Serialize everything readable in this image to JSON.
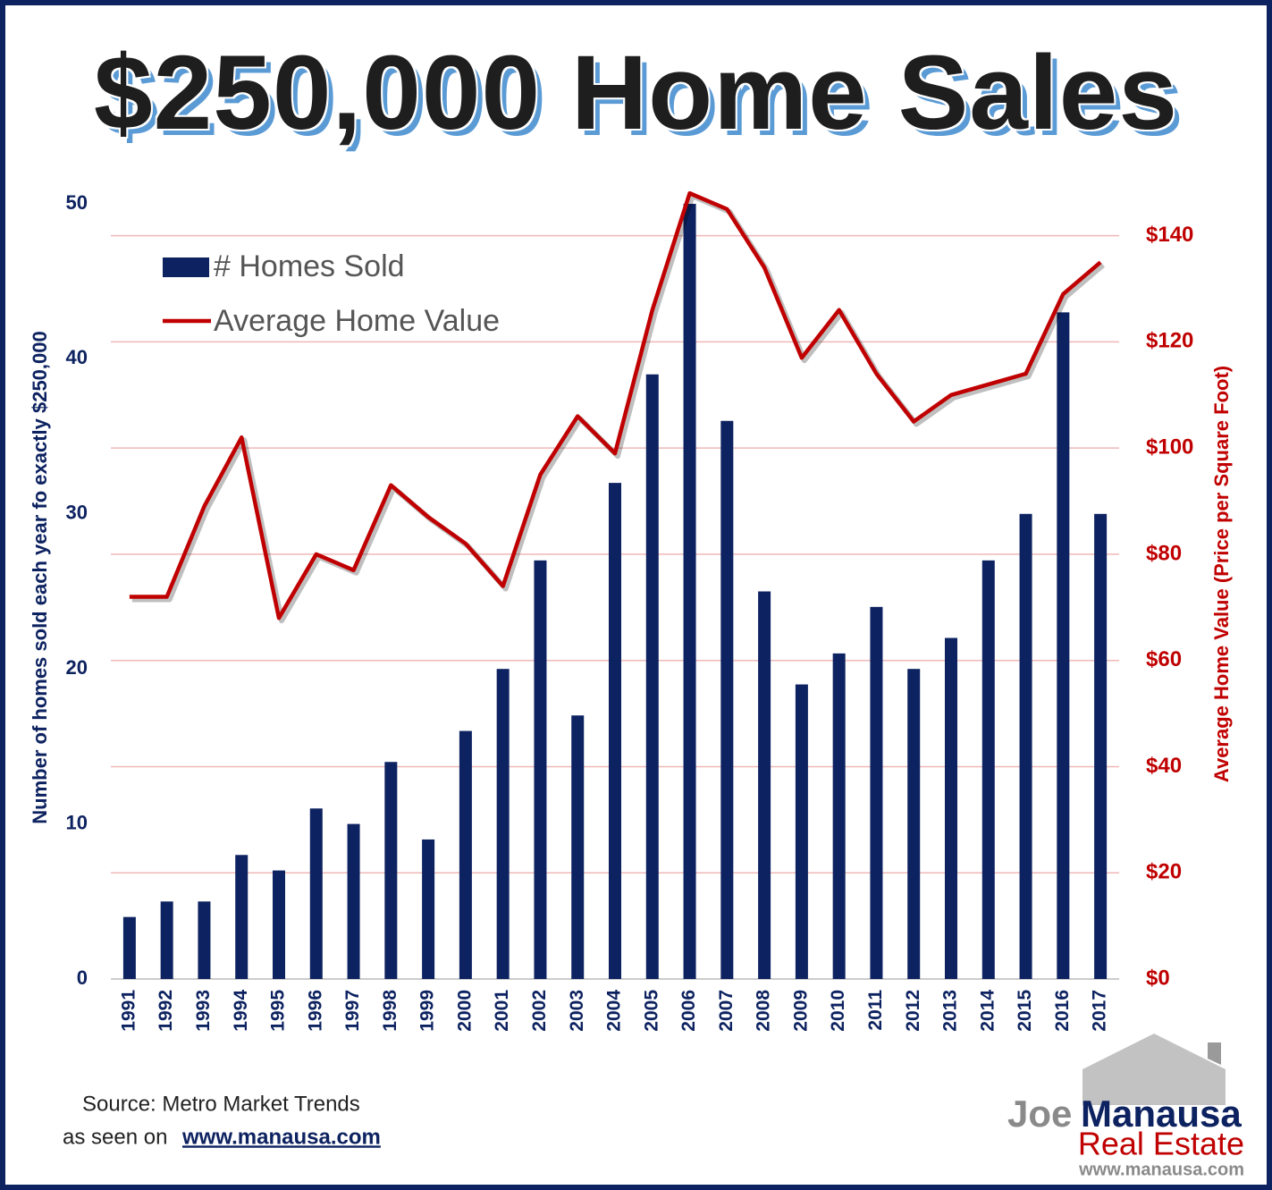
{
  "chart_data": {
    "type": "bar-line",
    "title": "$250,000 Home Sales",
    "categories": [
      "1991",
      "1992",
      "1993",
      "1994",
      "1995",
      "1996",
      "1997",
      "1998",
      "1999",
      "2000",
      "2001",
      "2002",
      "2003",
      "2004",
      "2005",
      "2006",
      "2007",
      "2008",
      "2009",
      "2010",
      "2011",
      "2012",
      "2013",
      "2014",
      "2015",
      "2016",
      "2017"
    ],
    "series": [
      {
        "name": "# Homes Sold",
        "type": "bar",
        "axis": "y",
        "color": "#0d2260",
        "values": [
          4,
          5,
          5,
          8,
          7,
          11,
          10,
          14,
          9,
          16,
          20,
          27,
          17,
          32,
          39,
          50,
          36,
          25,
          19,
          21,
          24,
          20,
          22,
          27,
          30,
          43,
          30
        ]
      },
      {
        "name": "Average Home Value",
        "type": "line",
        "axis": "y2",
        "color": "#c00000",
        "values": [
          72,
          72,
          89,
          102,
          68,
          80,
          77,
          93,
          87,
          82,
          74,
          95,
          106,
          99,
          126,
          148,
          145,
          134,
          117,
          126,
          114,
          105,
          110,
          112,
          114,
          129,
          135
        ]
      }
    ],
    "ylabel": "Number of homes sold each year fo exactly $250,000",
    "y2label": "Average Home Value (Price per Square Foot)",
    "ylim": [
      0,
      50
    ],
    "yticks": [
      0,
      10,
      20,
      30,
      40,
      50
    ],
    "y2lim": [
      0,
      146
    ],
    "y2ticks": [
      {
        "value": 0,
        "label": "$0"
      },
      {
        "value": 20,
        "label": "$20"
      },
      {
        "value": 40,
        "label": "$40"
      },
      {
        "value": 60,
        "label": "$60"
      },
      {
        "value": 80,
        "label": "$80"
      },
      {
        "value": 100,
        "label": "$100"
      },
      {
        "value": 120,
        "label": "$120"
      },
      {
        "value": 140,
        "label": "$140"
      }
    ],
    "grid": true,
    "legend": "upper left"
  },
  "source": {
    "text": "Source: Metro Market Trends",
    "prefix": "as seen on",
    "link": "www.manausa.com"
  },
  "logo": {
    "first": "Joe",
    "last": "Manausa",
    "line2": "Real Estate",
    "url": "www.manausa.com"
  }
}
